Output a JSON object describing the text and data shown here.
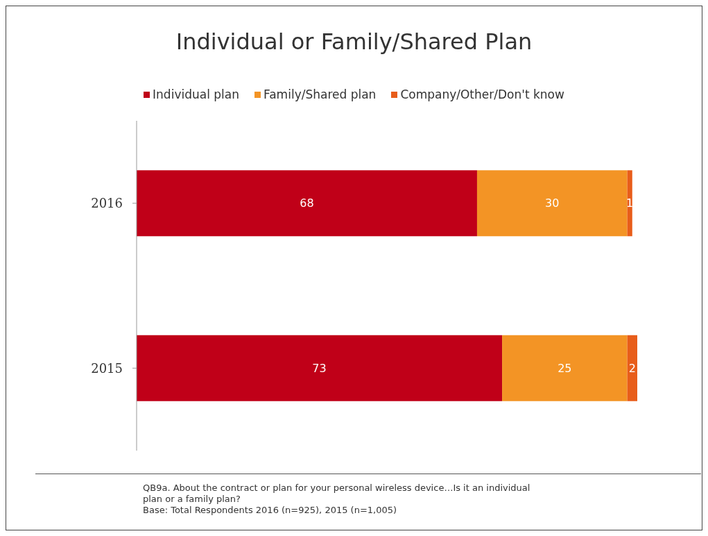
{
  "chart_data": {
    "type": "bar",
    "orientation": "horizontal",
    "stacked": true,
    "title": "Individual or Family/Shared Plan",
    "categories": [
      "2016",
      "2015"
    ],
    "series": [
      {
        "name": "Individual plan",
        "color": "#c00018",
        "values": [
          68,
          73
        ]
      },
      {
        "name": "Family/Shared plan",
        "color": "#f39425",
        "values": [
          30,
          25
        ]
      },
      {
        "name": "Company/Other/Don't know",
        "color": "#e85d1a",
        "values": [
          1,
          2
        ]
      }
    ],
    "data_labels": true,
    "legend": "top",
    "grid": false,
    "annotations": [
      "QB9a. About the contract or plan for your personal wireless device…Is it an individual plan or a family plan?",
      "Base: Total Respondents 2016 (n=925), 2015 (n=1,005)"
    ]
  }
}
